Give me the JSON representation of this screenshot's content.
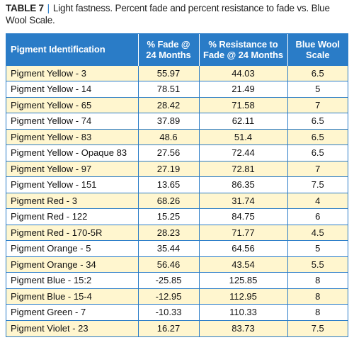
{
  "caption": {
    "label": "TABLE 7",
    "separator": "|",
    "text": "Light fastness. Percent fade and percent resistance to fade vs. Blue Wool Scale."
  },
  "table": {
    "headers": {
      "pigment": "Pigment Identification",
      "fade": "% Fade @ 24 Months",
      "resistance": "% Resistance to Fade @ 24 Months",
      "bluewool": "Blue Wool Scale"
    },
    "rows": [
      {
        "pigment": "Pigment Yellow - 3",
        "fade": "55.97",
        "resistance": "44.03",
        "bluewool": "6.5"
      },
      {
        "pigment": "Pigment Yellow - 14",
        "fade": "78.51",
        "resistance": "21.49",
        "bluewool": "5"
      },
      {
        "pigment": "Pigment Yellow - 65",
        "fade": "28.42",
        "resistance": "71.58",
        "bluewool": "7"
      },
      {
        "pigment": "Pigment Yellow - 74",
        "fade": "37.89",
        "resistance": "62.11",
        "bluewool": "6.5"
      },
      {
        "pigment": "Pigment Yellow - 83",
        "fade": "48.6",
        "resistance": "51.4",
        "bluewool": "6.5"
      },
      {
        "pigment": "Pigment Yellow - Opaque 83",
        "fade": "27.56",
        "resistance": "72.44",
        "bluewool": "6.5"
      },
      {
        "pigment": "Pigment Yellow - 97",
        "fade": "27.19",
        "resistance": "72.81",
        "bluewool": "7"
      },
      {
        "pigment": "Pigment Yellow - 151",
        "fade": "13.65",
        "resistance": "86.35",
        "bluewool": "7.5"
      },
      {
        "pigment": "Pigment Red - 3",
        "fade": "68.26",
        "resistance": "31.74",
        "bluewool": "4"
      },
      {
        "pigment": "Pigment Red - 122",
        "fade": "15.25",
        "resistance": "84.75",
        "bluewool": "6"
      },
      {
        "pigment": "Pigment Red - 170-5R",
        "fade": "28.23",
        "resistance": "71.77",
        "bluewool": "4.5"
      },
      {
        "pigment": "Pigment Orange - 5",
        "fade": "35.44",
        "resistance": "64.56",
        "bluewool": "5"
      },
      {
        "pigment": "Pigment Orange - 34",
        "fade": "56.46",
        "resistance": "43.54",
        "bluewool": "5.5"
      },
      {
        "pigment": "Pigment Blue - 15:2",
        "fade": "-25.85",
        "resistance": "125.85",
        "bluewool": "8"
      },
      {
        "pigment": "Pigment Blue - 15-4",
        "fade": "-12.95",
        "resistance": "112.95",
        "bluewool": "8"
      },
      {
        "pigment": "Pigment Green - 7",
        "fade": "-10.33",
        "resistance": "110.33",
        "bluewool": "8"
      },
      {
        "pigment": "Pigment Violet - 23",
        "fade": "16.27",
        "resistance": "83.73",
        "bluewool": "7.5"
      }
    ]
  },
  "colors": {
    "header_blue": "#2a7cc7",
    "stripe_yellow": "#fff6cf",
    "row_white": "#ffffff"
  }
}
